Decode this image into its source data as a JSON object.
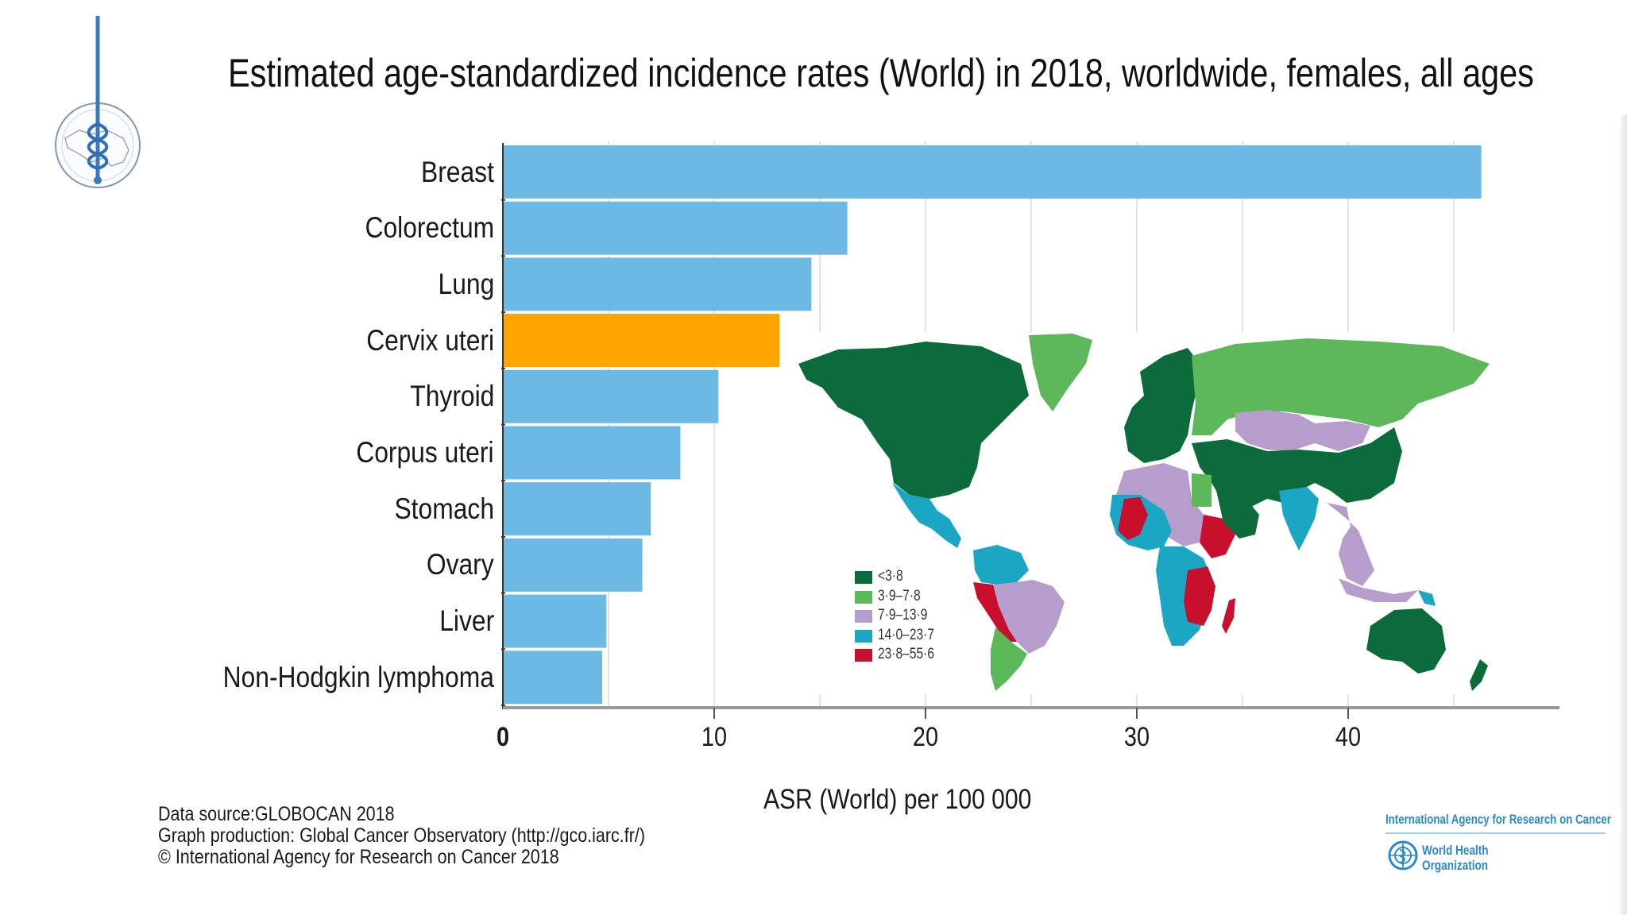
{
  "logo": {
    "name": "institute-seal"
  },
  "title": "Estimated age-standardized incidence rates (World) in 2018, worldwide, females, all ages",
  "chart_data": {
    "type": "bar",
    "orientation": "horizontal",
    "title": "Estimated age-standardized incidence rates (World) in 2018, worldwide, females, all ages",
    "xlabel": "ASR (World) per 100 000",
    "ylabel": "",
    "xlim": [
      0,
      50
    ],
    "grid": true,
    "categories": [
      "Breast",
      "Colorectum",
      "Lung",
      "Cervix uteri",
      "Thyroid",
      "Corpus uteri",
      "Stomach",
      "Ovary",
      "Liver",
      "Non-Hodgkin lymphoma"
    ],
    "values": [
      46.3,
      16.3,
      14.6,
      13.1,
      10.2,
      8.4,
      7.0,
      6.6,
      4.9,
      4.7
    ],
    "highlight": "Cervix uteri",
    "bar_color": "#6cb9e3",
    "highlight_color": "#ffa500",
    "xticks": [
      "0",
      "10",
      "20",
      "30",
      "40"
    ],
    "xtick_values": [
      0,
      10,
      20,
      30,
      40
    ]
  },
  "map": {
    "legend": [
      {
        "label": "<3·8",
        "color": "#0b6b3a"
      },
      {
        "label": "3·9–7·8",
        "color": "#5db85a"
      },
      {
        "label": "7·9–13·9",
        "color": "#b79dcc"
      },
      {
        "label": "14·0–23·7",
        "color": "#1ba6c4"
      },
      {
        "label": "23·8–55·6",
        "color": "#c8102e"
      }
    ]
  },
  "footer": {
    "lines": [
      "Data source:GLOBOCAN 2018",
      "Graph production: Global Cancer Observatory (http://gco.iarc.fr/)",
      "© International Agency for Research on Cancer 2018"
    ]
  },
  "branding": {
    "iarc": "International Agency for Research on Cancer",
    "who_line1": "World Health",
    "who_line2": "Organization"
  }
}
